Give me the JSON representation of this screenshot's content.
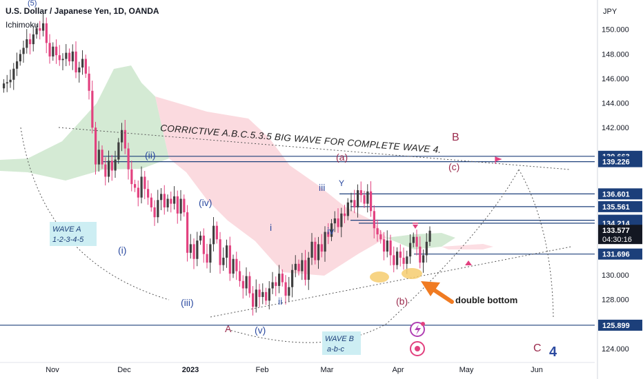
{
  "header": {
    "title": "U.S. Dollar / Japanese Yen, 1D, OANDA",
    "indicator": "Ichimoku"
  },
  "currency": "JPY",
  "colors": {
    "up": "#3f3f3f",
    "down": "#e2417f",
    "cloud_bull": "#cfe8cf",
    "cloud_bear": "#fbd6dc",
    "level_line": "#1c3f7a",
    "label_bg": "#1c3f7a",
    "price_bg": "#131722",
    "arrow": "#f07b22",
    "wave_primary": "#9a2a4c",
    "wave_minor": "#2b4aa0"
  },
  "chart_data": {
    "type": "candlestick",
    "title": "U.S. Dollar / Japanese Yen, 1D, OANDA",
    "indicator": "Ichimoku",
    "y_axis_unit": "JPY",
    "ylim": [
      123.2,
      152.4
    ],
    "y_ticks": [
      124.0,
      126.0,
      128.0,
      130.0,
      132.0,
      134.0,
      136.0,
      138.0,
      140.0,
      142.0,
      144.0,
      146.0,
      148.0,
      150.0
    ],
    "x_ticks": [
      "Nov",
      "Dec",
      "2023",
      "Feb",
      "Mar",
      "Apr",
      "May",
      "Jun"
    ],
    "price_levels": [
      {
        "value": "139.663",
        "price": 139.663
      },
      {
        "value": "139.226",
        "price": 139.226
      },
      {
        "value": "136.601",
        "price": 136.601
      },
      {
        "value": "135.561",
        "price": 135.561
      },
      {
        "value": "134.453",
        "price": 134.453
      },
      {
        "value": "134.214",
        "price": 134.214
      },
      {
        "value": "131.696",
        "price": 131.696
      },
      {
        "value": "125.899",
        "price": 125.899
      }
    ],
    "current_price": {
      "value": "133.577",
      "price": 133.577,
      "countdown": "04:30:16"
    },
    "candles_close": [
      145.6,
      145.7,
      145.9,
      146.8,
      147.4,
      148.0,
      148.5,
      149.2,
      148.8,
      149.6,
      150.1,
      149.9,
      150.5,
      148.9,
      147.8,
      148.6,
      147.9,
      147.5,
      147.6,
      148.1,
      147.4,
      148.2,
      146.5,
      146.9,
      147.6,
      146.4,
      145.0,
      142.0,
      139.0,
      140.2,
      139.0,
      138.0,
      139.3,
      138.5,
      139.4,
      140.8,
      141.8,
      140.3,
      138.6,
      137.4,
      137.1,
      136.3,
      138.0,
      137.0,
      136.3,
      135.5,
      134.7,
      136.1,
      136.6,
      135.5,
      136.2,
      135.8,
      136.4,
      135.0,
      136.2,
      135.1,
      131.8,
      132.5,
      131.3,
      132.8,
      133.2,
      131.7,
      131.0,
      132.5,
      134.0,
      132.9,
      130.8,
      131.4,
      132.4,
      130.1,
      131.3,
      130.3,
      129.5,
      128.9,
      129.9,
      128.5,
      127.4,
      128.8,
      128.2,
      128.6,
      127.9,
      128.9,
      129.4,
      129.1,
      130.1,
      129.4,
      128.3,
      129.0,
      130.4,
      130.9,
      130.3,
      131.2,
      129.6,
      131.4,
      132.7,
      131.2,
      132.5,
      131.9,
      133.5,
      133.1,
      134.2,
      134.6,
      133.9,
      135.0,
      134.8,
      135.9,
      136.1,
      135.5,
      136.9,
      136.5,
      135.8,
      136.8,
      135.2,
      133.8,
      133.3,
      132.9,
      131.9,
      132.8,
      131.6,
      130.8,
      131.9,
      131.4,
      130.9,
      131.5,
      132.6,
      133.1,
      132.3,
      131.0,
      131.6,
      132.7,
      133.6
    ]
  },
  "annotations": {
    "headline": "CORRICTIVE A.B.C.5.3.5 BIG WAVE FOR COMPLETE WAVE 4.",
    "wave_a_title": "WAVE A",
    "wave_a_sub": "1-2-3-4-5",
    "wave_b_title": "WAVE B",
    "wave_b_sub": "a-b-c",
    "double_bottom": "double bottom",
    "top_5": "(5)",
    "i_paren": "(i)",
    "ii_paren": "(ii)",
    "iii_paren": "(iii)",
    "iv_paren": "(iv)",
    "v_paren": "(v)",
    "A": "A",
    "B": "B",
    "C": "C",
    "four": "4",
    "a_paren": "(a)",
    "b_paren": "(b)",
    "c_paren": "(c)",
    "i": "i",
    "ii": "ii",
    "iii": "iii",
    "iv": "iv",
    "Y": "Y"
  }
}
